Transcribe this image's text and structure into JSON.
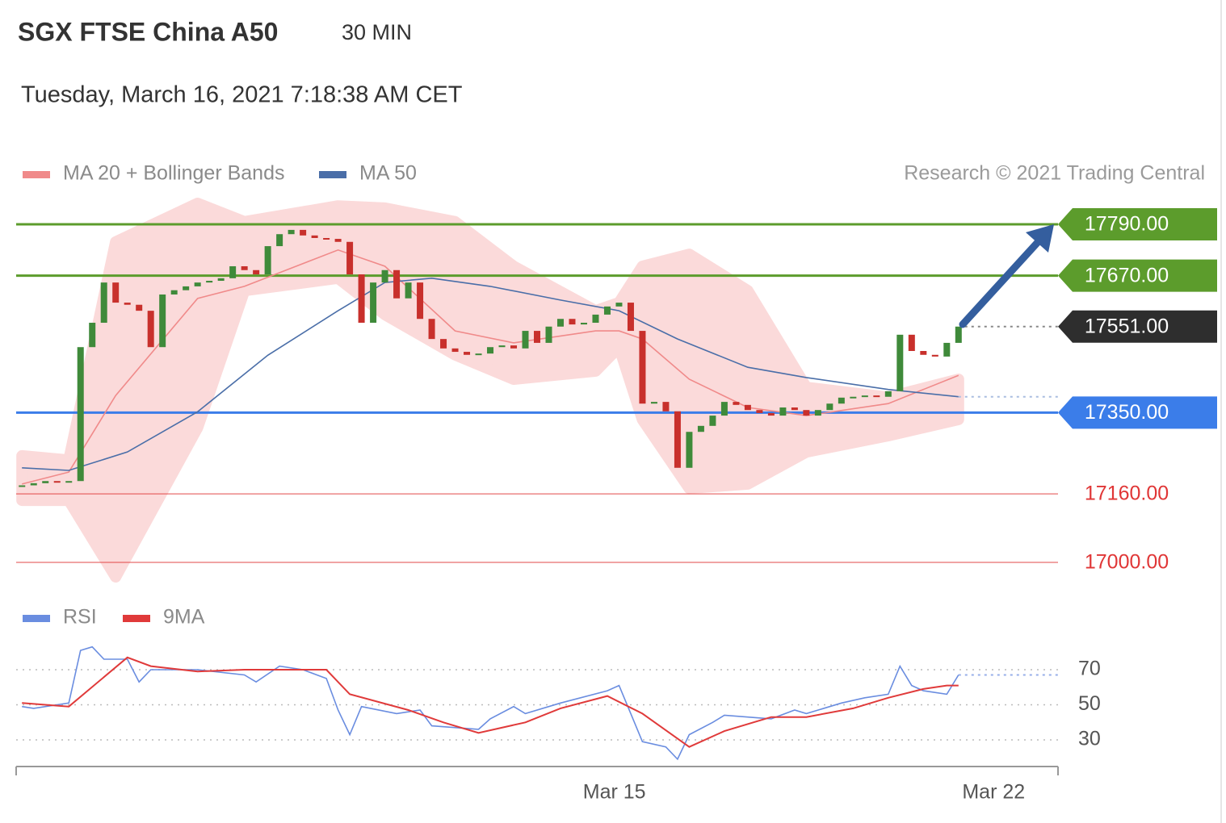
{
  "header": {
    "title": "SGX FTSE China A50",
    "interval": "30 MIN",
    "timestamp": "Tuesday, March 16, 2021 7:18:38 AM CET",
    "credit": "Research © 2021 Trading Central"
  },
  "chart_data": [
    {
      "type": "candlestick",
      "xlim": [
        -0.5,
        88.5
      ],
      "ylim": [
        16960,
        17840
      ],
      "up_color": "#3f8a3a",
      "down_color": "#c8302c",
      "close": [
        17180,
        17185,
        17190,
        17188,
        17190,
        17503,
        17560,
        17654,
        17607,
        17602,
        17588,
        17503,
        17626,
        17636,
        17645,
        17654,
        17658,
        17664,
        17692,
        17683,
        17673,
        17739,
        17767,
        17777,
        17764,
        17758,
        17756,
        17749,
        17673,
        17560,
        17654,
        17683,
        17617,
        17654,
        17569,
        17522,
        17500,
        17492,
        17485,
        17488,
        17503,
        17507,
        17500,
        17541,
        17513,
        17551,
        17569,
        17556,
        17560,
        17579,
        17598,
        17607,
        17541,
        17371,
        17375,
        17353,
        17221,
        17305,
        17319,
        17343,
        17375,
        17368,
        17356,
        17349,
        17343,
        17362,
        17356,
        17343,
        17356,
        17371,
        17385,
        17387,
        17390,
        17387,
        17400,
        17532,
        17494,
        17485,
        17481,
        17513,
        17551
      ],
      "series": [
        {
          "name": "MA 20 + Bollinger Bands",
          "color": "#f08a8a",
          "band_color": "#fbdada",
          "x": [
            0,
            4,
            8,
            15,
            19,
            27,
            31,
            37,
            42,
            49,
            51,
            53,
            57,
            62,
            67,
            74,
            80
          ],
          "values": [
            17183,
            17211,
            17390,
            17617,
            17645,
            17730,
            17692,
            17541,
            17513,
            17541,
            17541,
            17522,
            17428,
            17362,
            17343,
            17371,
            17437
          ],
          "upper": [
            17249,
            17239,
            17749,
            17839,
            17796,
            17833,
            17828,
            17796,
            17692,
            17588,
            17607,
            17692,
            17720,
            17635,
            17409,
            17386,
            17428
          ],
          "lower": [
            17145,
            17145,
            16966,
            17315,
            17635,
            17664,
            17579,
            17485,
            17428,
            17447,
            17503,
            17334,
            17173,
            17183,
            17258,
            17296,
            17334
          ]
        },
        {
          "name": "MA 50",
          "color": "#4a6ea8",
          "x": [
            0,
            4,
            9,
            15,
            21,
            27,
            31,
            35,
            40,
            46,
            51,
            56,
            62,
            67,
            74,
            80
          ],
          "values": [
            17221,
            17215,
            17258,
            17352,
            17484,
            17588,
            17654,
            17664,
            17645,
            17613,
            17588,
            17522,
            17456,
            17432,
            17404,
            17387
          ]
        }
      ],
      "levels": [
        {
          "value": 17790,
          "label": "17790.00",
          "color": "#5c9c2c",
          "tag": true,
          "line": "solid"
        },
        {
          "value": 17670,
          "label": "17670.00",
          "color": "#5c9c2c",
          "tag": true,
          "line": "solid"
        },
        {
          "value": 17551,
          "label": "17551.00",
          "color": "#2e2e2e",
          "tag": true,
          "line": "dotted"
        },
        {
          "value": 17350,
          "label": "17350.00",
          "color": "#3b7de9",
          "tag": true,
          "line": "solid"
        },
        {
          "value": 17160,
          "label": "17160.00",
          "color": "#e03636",
          "tag": false,
          "line": "solid"
        },
        {
          "value": 17000,
          "label": "17000.00",
          "color": "#e03636",
          "tag": false,
          "line": "solid"
        }
      ]
    },
    {
      "type": "line",
      "xlim": [
        -0.5,
        88.5
      ],
      "ylim": [
        14,
        90
      ],
      "yticks": [
        70,
        50,
        30
      ],
      "grid": true,
      "xticks": [
        {
          "value": 50.6,
          "label": "Mar 15"
        },
        {
          "value": 83,
          "label": "Mar 22"
        }
      ],
      "series": [
        {
          "name": "RSI",
          "color": "#6a8de0",
          "x": [
            0,
            1,
            4,
            5,
            6,
            7,
            9,
            10,
            11,
            15,
            19,
            20,
            22,
            24,
            26,
            27,
            28,
            29,
            32,
            34,
            35,
            39,
            40,
            42,
            43,
            46,
            50,
            51,
            52,
            53,
            55,
            56,
            57,
            59,
            60,
            64,
            66,
            67,
            69,
            70,
            72,
            74,
            75,
            76,
            77,
            79,
            80
          ],
          "values": [
            49,
            48,
            51,
            81,
            83,
            76,
            76,
            63,
            70,
            70,
            67,
            63,
            72,
            70,
            65,
            47,
            33,
            49,
            45,
            47,
            38,
            36,
            42,
            49,
            45,
            51,
            58,
            61,
            45,
            29,
            26,
            19,
            33,
            40,
            44,
            42,
            47,
            45,
            49,
            51,
            54,
            56,
            72,
            61,
            58,
            56,
            67
          ]
        },
        {
          "name": "9MA",
          "color": "#e03a3a",
          "x": [
            0,
            4,
            9,
            11,
            15,
            19,
            26,
            28,
            33,
            36,
            39,
            43,
            46,
            50,
            53,
            57,
            60,
            64,
            67,
            71,
            74,
            77,
            79,
            80
          ],
          "values": [
            51,
            49,
            77,
            72,
            69,
            70,
            70,
            56,
            47,
            40,
            34,
            40,
            48,
            55,
            45,
            26,
            35,
            43,
            43,
            48,
            54,
            59,
            61,
            61
          ]
        }
      ]
    }
  ]
}
